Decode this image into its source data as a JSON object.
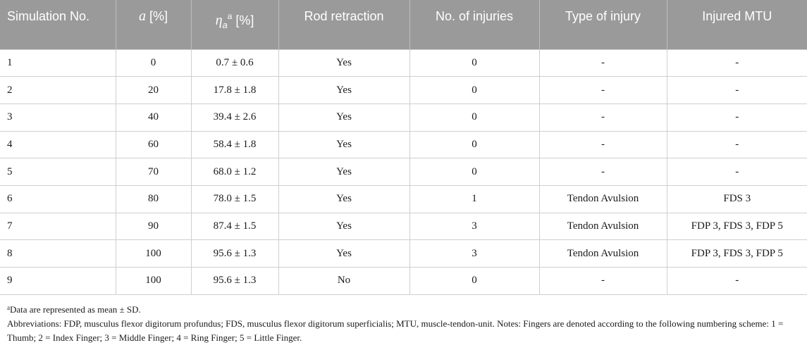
{
  "table": {
    "headers": {
      "sim_no": "Simulation No.",
      "a_symbol": "a",
      "a_unit": " [%]",
      "eta_symbol": "η",
      "eta_subscript": "a",
      "eta_superscript": "a",
      "eta_unit": " [%]",
      "rod_retraction": "Rod retraction",
      "no_injuries": "No. of injuries",
      "type_injury": "Type of injury",
      "injured_mtu": "Injured MTU"
    },
    "rows": [
      {
        "sim": "1",
        "a": "0",
        "eta": "0.7 ± 0.6",
        "rod": "Yes",
        "n": "0",
        "type": "-",
        "mtu": "-"
      },
      {
        "sim": "2",
        "a": "20",
        "eta": "17.8 ± 1.8",
        "rod": "Yes",
        "n": "0",
        "type": "-",
        "mtu": "-"
      },
      {
        "sim": "3",
        "a": "40",
        "eta": "39.4 ± 2.6",
        "rod": "Yes",
        "n": "0",
        "type": "-",
        "mtu": "-"
      },
      {
        "sim": "4",
        "a": "60",
        "eta": "58.4 ± 1.8",
        "rod": "Yes",
        "n": "0",
        "type": "-",
        "mtu": "-"
      },
      {
        "sim": "5",
        "a": "70",
        "eta": "68.0 ± 1.2",
        "rod": "Yes",
        "n": "0",
        "type": "-",
        "mtu": "-"
      },
      {
        "sim": "6",
        "a": "80",
        "eta": "78.0 ± 1.5",
        "rod": "Yes",
        "n": "1",
        "type": "Tendon Avulsion",
        "mtu": "FDS 3"
      },
      {
        "sim": "7",
        "a": "90",
        "eta": "87.4 ± 1.5",
        "rod": "Yes",
        "n": "3",
        "type": "Tendon Avulsion",
        "mtu": "FDP 3, FDS 3, FDP 5"
      },
      {
        "sim": "8",
        "a": "100",
        "eta": "95.6 ± 1.3",
        "rod": "Yes",
        "n": "3",
        "type": "Tendon Avulsion",
        "mtu": "FDP 3, FDS 3, FDP 5"
      },
      {
        "sim": "9",
        "a": "100",
        "eta": "95.6 ± 1.3",
        "rod": "No",
        "n": "0",
        "type": "-",
        "mtu": "-"
      }
    ]
  },
  "footnotes": {
    "note_marker": "a",
    "note_text": "Data are represented as mean ± SD.",
    "abbreviations": "Abbreviations: FDP, musculus flexor digitorum profundus; FDS, musculus flexor digitorum superficialis; MTU, muscle-tendon-unit. Notes: Fingers are denoted according to the following numbering scheme: 1 = Thumb; 2 = Index Finger; 3 = Middle Finger; 4 = Ring Finger; 5 = Little Finger."
  },
  "colors": {
    "header_bg": "#9a9a9a",
    "header_text": "#ffffff",
    "grid": "#cfcfcf"
  }
}
